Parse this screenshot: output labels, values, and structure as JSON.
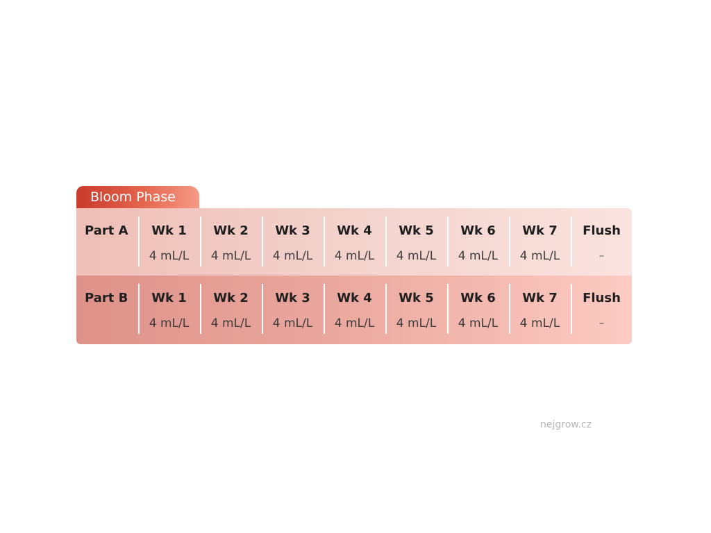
{
  "phase": {
    "title": "Bloom Phase",
    "accent_color": "#d94a36"
  },
  "rows": [
    {
      "part": "Part A",
      "cells": [
        {
          "week": "Wk 1",
          "dose": "4 mL/L"
        },
        {
          "week": "Wk 2",
          "dose": "4 mL/L"
        },
        {
          "week": "Wk 3",
          "dose": "4 mL/L"
        },
        {
          "week": "Wk 4",
          "dose": "4 mL/L"
        },
        {
          "week": "Wk 5",
          "dose": "4 mL/L"
        },
        {
          "week": "Wk 6",
          "dose": "4 mL/L"
        },
        {
          "week": "Wk 7",
          "dose": "4 mL/L"
        },
        {
          "week": "Flush",
          "dose": "–"
        }
      ]
    },
    {
      "part": "Part B",
      "cells": [
        {
          "week": "Wk 1",
          "dose": "4 mL/L"
        },
        {
          "week": "Wk 2",
          "dose": "4 mL/L"
        },
        {
          "week": "Wk 3",
          "dose": "4 mL/L"
        },
        {
          "week": "Wk 4",
          "dose": "4 mL/L"
        },
        {
          "week": "Wk 5",
          "dose": "4 mL/L"
        },
        {
          "week": "Wk 6",
          "dose": "4 mL/L"
        },
        {
          "week": "Wk 7",
          "dose": "4 mL/L"
        },
        {
          "week": "Flush",
          "dose": "–"
        }
      ]
    }
  ],
  "watermark": "nejgrow.cz"
}
